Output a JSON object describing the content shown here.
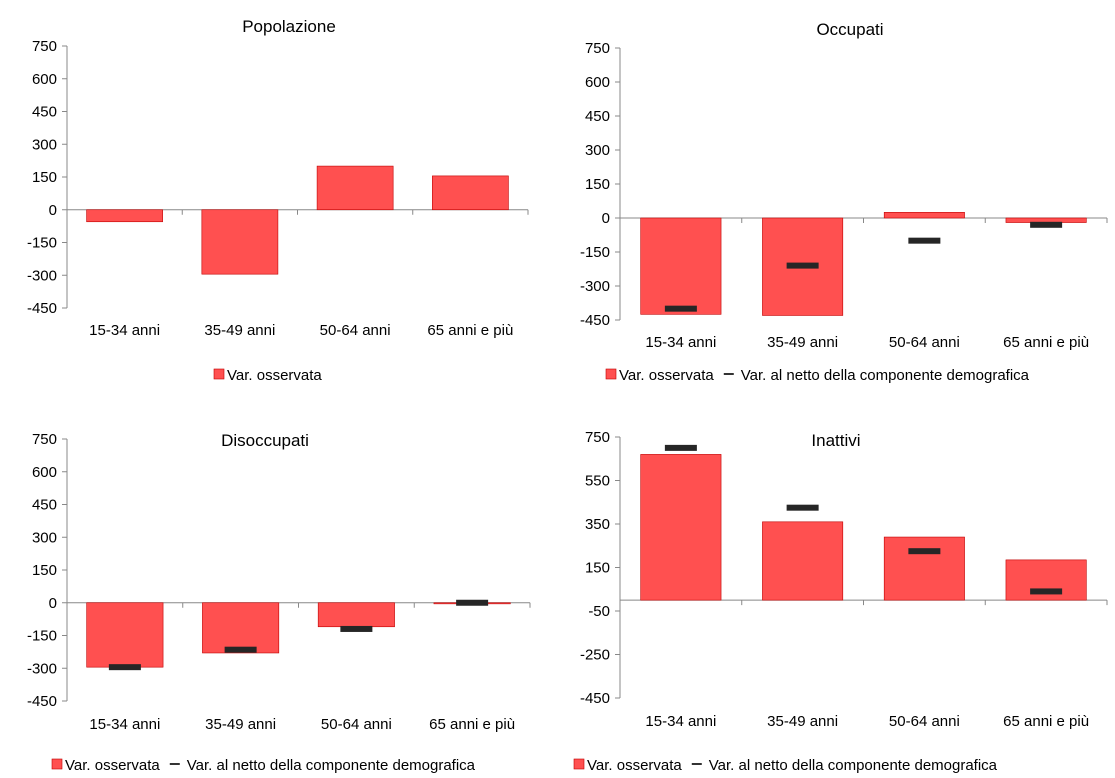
{
  "colors": {
    "bar": "#ff5050",
    "bar_edge": "#c00000",
    "marker": "#262626",
    "axis": "#888888"
  },
  "legend": {
    "observed": "Var. osservata",
    "net": "Var. al netto della componente demografica"
  },
  "chart_data": [
    {
      "type": "bar",
      "title": "Popolazione",
      "categories": [
        "15-34 anni",
        "35-49 anni",
        "50-64 anni",
        "65 anni e più"
      ],
      "ylim": [
        -450,
        750
      ],
      "yticks": [
        750,
        600,
        450,
        300,
        150,
        0,
        -150,
        -300,
        -450
      ],
      "series": [
        {
          "name": "Var. osservata",
          "type": "bar",
          "values": [
            -55,
            -295,
            200,
            155
          ]
        }
      ],
      "legend": [
        "Var. osservata"
      ]
    },
    {
      "type": "bar",
      "title": "Occupati",
      "categories": [
        "15-34 anni",
        "35-49 anni",
        "50-64 anni",
        "65 anni e più"
      ],
      "ylim": [
        -450,
        750
      ],
      "yticks": [
        750,
        600,
        450,
        300,
        150,
        0,
        -150,
        -300,
        -450
      ],
      "series": [
        {
          "name": "Var. osservata",
          "type": "bar",
          "values": [
            -425,
            -430,
            25,
            -20
          ]
        },
        {
          "name": "Var. al netto della componente demografica",
          "type": "marker",
          "values": [
            -400,
            -210,
            -100,
            -30
          ]
        }
      ],
      "legend": [
        "Var. osservata",
        "Var. al netto della componente demografica"
      ]
    },
    {
      "type": "bar",
      "title": "Disoccupati",
      "categories": [
        "15-34 anni",
        "35-49 anni",
        "50-64 anni",
        "65 anni e più"
      ],
      "ylim": [
        -450,
        750
      ],
      "yticks": [
        750,
        600,
        450,
        300,
        150,
        0,
        -150,
        -300,
        -450
      ],
      "series": [
        {
          "name": "Var. osservata",
          "type": "bar",
          "values": [
            -295,
            -230,
            -110,
            -5
          ]
        },
        {
          "name": "Var. al netto della componente demografica",
          "type": "marker",
          "values": [
            -295,
            -215,
            -120,
            0
          ]
        }
      ],
      "legend": [
        "Var. osservata",
        "Var. al netto della componente demografica"
      ]
    },
    {
      "type": "bar",
      "title": "Inattivi",
      "categories": [
        "15-34 anni",
        "35-49 anni",
        "50-64 anni",
        "65 anni e più"
      ],
      "ylim": [
        -450,
        750
      ],
      "yticks": [
        750,
        550,
        350,
        150,
        -50,
        -250,
        -450
      ],
      "series": [
        {
          "name": "Var. osservata",
          "type": "bar",
          "values": [
            670,
            360,
            290,
            185
          ]
        },
        {
          "name": "Var. al netto della componente demografica",
          "type": "marker",
          "values": [
            700,
            425,
            225,
            40
          ]
        }
      ],
      "legend": [
        "Var. osservata",
        "Var. al netto della componente demografica"
      ]
    }
  ]
}
